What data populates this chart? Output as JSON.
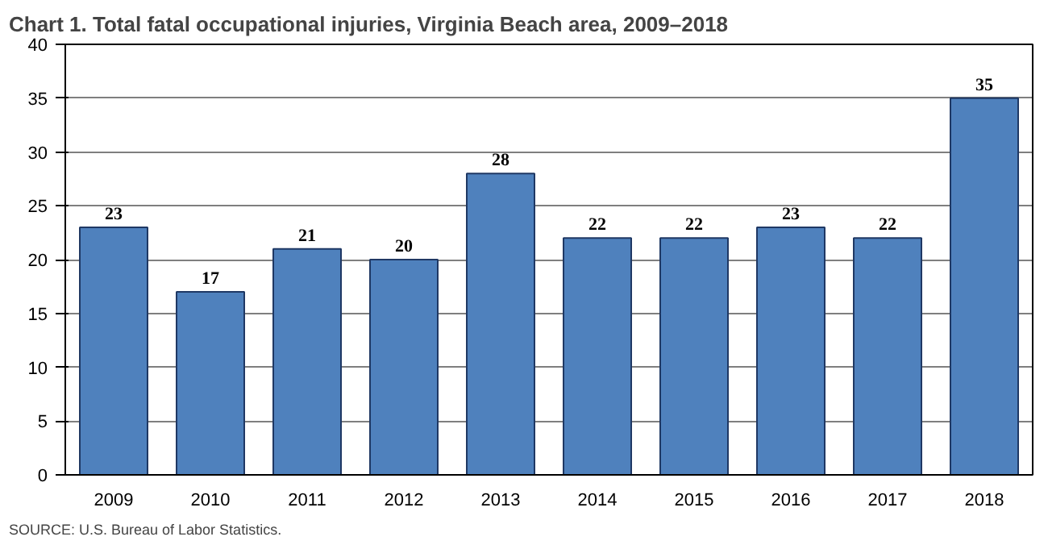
{
  "chart_data": {
    "type": "bar",
    "title": "Chart 1. Total fatal occupational injuries, Virginia Beach area, 2009–2018",
    "categories": [
      "2009",
      "2010",
      "2011",
      "2012",
      "2013",
      "2014",
      "2015",
      "2016",
      "2017",
      "2018"
    ],
    "values": [
      23,
      17,
      21,
      20,
      28,
      22,
      22,
      23,
      22,
      35
    ],
    "color": "#4f81bd",
    "ylim": [
      0,
      40
    ],
    "yticks": [
      0,
      5,
      10,
      15,
      20,
      25,
      30,
      35,
      40
    ],
    "grid": "y",
    "data_labels": true,
    "annotations": [
      "SOURCE: U.S. Bureau of Labor Statistics."
    ]
  }
}
